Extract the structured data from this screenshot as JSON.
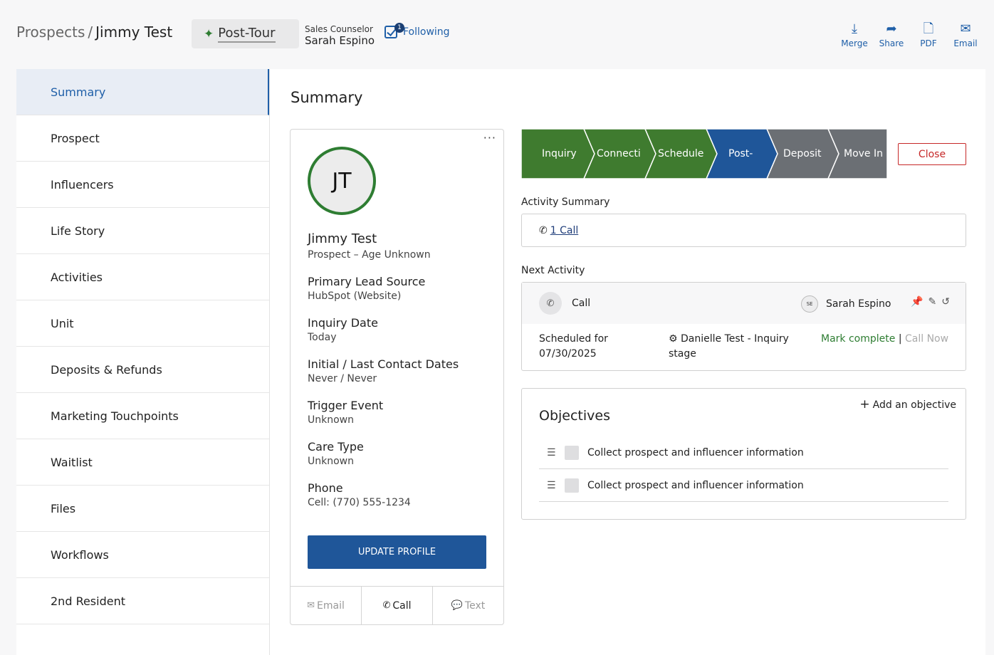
{
  "header": {
    "breadcrumb_root": "Prospects",
    "breadcrumb_sep": "/",
    "breadcrumb_current": "Jimmy Test",
    "stage_chip": "Post-Tour",
    "counselor_role": "Sales Counselor",
    "counselor_name": "Sarah Espino",
    "following_label": "Following",
    "following_count": "1",
    "actions": [
      {
        "label": "Merge",
        "icon": "merge-icon"
      },
      {
        "label": "Share",
        "icon": "share-icon"
      },
      {
        "label": "PDF",
        "icon": "pdf-icon"
      },
      {
        "label": "Email",
        "icon": "email-icon"
      }
    ]
  },
  "sidebar": {
    "items": [
      {
        "label": "Summary"
      },
      {
        "label": "Prospect"
      },
      {
        "label": "Influencers"
      },
      {
        "label": "Life Story"
      },
      {
        "label": "Activities"
      },
      {
        "label": "Unit"
      },
      {
        "label": "Deposits & Refunds"
      },
      {
        "label": "Marketing Touchpoints"
      },
      {
        "label": "Waitlist"
      },
      {
        "label": "Files"
      },
      {
        "label": "Workflows"
      },
      {
        "label": "2nd Resident"
      }
    ]
  },
  "main": {
    "title": "Summary",
    "profile": {
      "initials": "JT",
      "name": "Jimmy Test",
      "subtitle": "Prospect – Age Unknown",
      "fields": [
        {
          "label": "Primary Lead Source",
          "value": "HubSpot (Website)"
        },
        {
          "label": "Inquiry Date",
          "value": "Today"
        },
        {
          "label": "Initial / Last Contact Dates",
          "value": "Never / Never"
        },
        {
          "label": "Trigger Event",
          "value": "Unknown"
        },
        {
          "label": "Care Type",
          "value": "Unknown"
        },
        {
          "label": "Phone",
          "value": "Cell: (770) 555-1234"
        }
      ],
      "update_button": "UPDATE PROFILE",
      "footer": {
        "email": "Email",
        "call": "Call",
        "text": "Text"
      }
    },
    "pipeline": {
      "stages": [
        {
          "label": "Inquiry",
          "color": "#3f7b2f"
        },
        {
          "label": "Connecti",
          "color": "#3f7b2f"
        },
        {
          "label": "Schedule",
          "color": "#3f7b2f"
        },
        {
          "label": "Post-",
          "color": "#1f5699"
        },
        {
          "label": "Deposit",
          "color": "#6b6f74"
        },
        {
          "label": "Move In",
          "color": "#6b6f74"
        }
      ],
      "close_button": "Close"
    },
    "activity_summary": {
      "label": "Activity Summary",
      "link": "1 Call"
    },
    "next_activity": {
      "label": "Next Activity",
      "type": "Call",
      "assignee_initials": "SE",
      "assignee": "Sarah Espino",
      "scheduled_label": "Scheduled for",
      "scheduled_date": "07/30/2025",
      "association": "Danielle Test - Inquiry stage",
      "mark_complete": "Mark complete",
      "separator": "|",
      "call_now": "Call Now"
    },
    "objectives": {
      "title": "Objectives",
      "add_label": "Add an objective",
      "items": [
        {
          "text": "Collect prospect and influencer information"
        },
        {
          "text": "Collect prospect and influencer information"
        }
      ]
    }
  }
}
